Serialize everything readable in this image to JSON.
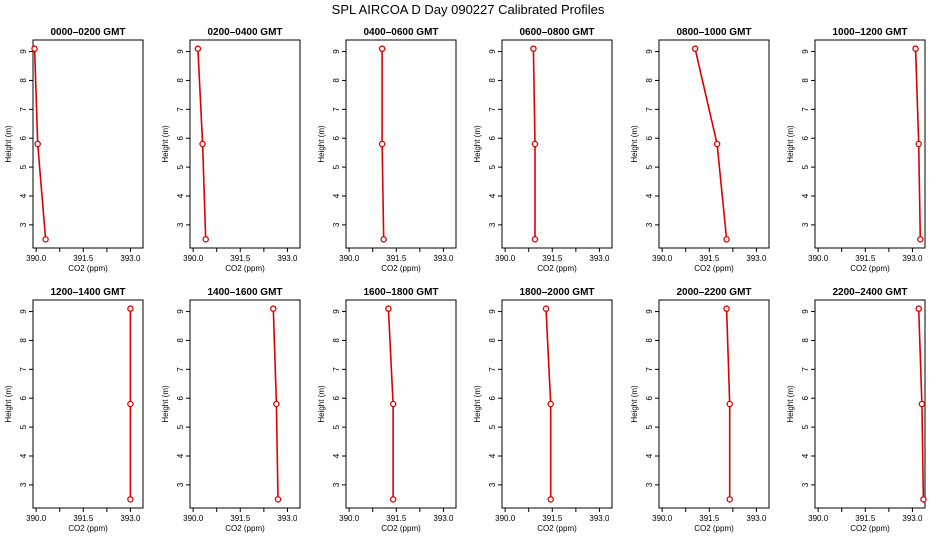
{
  "title": "SPL AIRCOA D  Day 090227  Calibrated Profiles",
  "colors": {
    "line": "#dd0000",
    "axis": "#000000",
    "background": "#ffffff"
  },
  "chart_data": [
    {
      "type": "line",
      "title": "0000–0200 GMT",
      "xlabel": "CO2 (ppm)",
      "ylabel": "Height (m)",
      "xlim": [
        389.9,
        393.4
      ],
      "ylim": [
        2.2,
        9.4
      ],
      "xticks": [
        "390.0",
        "391.5",
        "393.0"
      ],
      "yticks": [
        "3",
        "4",
        "5",
        "6",
        "7",
        "8",
        "9"
      ],
      "x": [
        389.95,
        390.05,
        390.3
      ],
      "y": [
        9.1,
        5.8,
        2.5
      ]
    },
    {
      "type": "line",
      "title": "0200–0400 GMT",
      "xlabel": "CO2 (ppm)",
      "ylabel": "Height (m)",
      "xlim": [
        389.9,
        393.4
      ],
      "ylim": [
        2.2,
        9.4
      ],
      "xticks": [
        "390.0",
        "391.5",
        "393.0"
      ],
      "yticks": [
        "3",
        "4",
        "5",
        "6",
        "7",
        "8",
        "9"
      ],
      "x": [
        390.15,
        390.3,
        390.4
      ],
      "y": [
        9.1,
        5.8,
        2.5
      ]
    },
    {
      "type": "line",
      "title": "0400–0600 GMT",
      "xlabel": "CO2 (ppm)",
      "ylabel": "Height (m)",
      "xlim": [
        389.9,
        393.4
      ],
      "ylim": [
        2.2,
        9.4
      ],
      "xticks": [
        "390.0",
        "391.5",
        "393.0"
      ],
      "yticks": [
        "3",
        "4",
        "5",
        "6",
        "7",
        "8",
        "9"
      ],
      "x": [
        391.05,
        391.05,
        391.1
      ],
      "y": [
        9.1,
        5.8,
        2.5
      ]
    },
    {
      "type": "line",
      "title": "0600–0800 GMT",
      "xlabel": "CO2 (ppm)",
      "ylabel": "Height (m)",
      "xlim": [
        389.9,
        393.4
      ],
      "ylim": [
        2.2,
        9.4
      ],
      "xticks": [
        "390.0",
        "391.5",
        "393.0"
      ],
      "yticks": [
        "3",
        "4",
        "5",
        "6",
        "7",
        "8",
        "9"
      ],
      "x": [
        390.9,
        390.95,
        390.95
      ],
      "y": [
        9.1,
        5.8,
        2.5
      ]
    },
    {
      "type": "line",
      "title": "0800–1000 GMT",
      "xlabel": "CO2 (ppm)",
      "ylabel": "Height (m)",
      "xlim": [
        389.9,
        393.4
      ],
      "ylim": [
        2.2,
        9.4
      ],
      "xticks": [
        "390.0",
        "391.5",
        "393.0"
      ],
      "yticks": [
        "3",
        "4",
        "5",
        "6",
        "7",
        "8",
        "9"
      ],
      "x": [
        391.05,
        391.75,
        392.05
      ],
      "y": [
        9.1,
        5.8,
        2.5
      ]
    },
    {
      "type": "line",
      "title": "1000–1200 GMT",
      "xlabel": "CO2 (ppm)",
      "ylabel": "Height (m)",
      "xlim": [
        389.9,
        393.4
      ],
      "ylim": [
        2.2,
        9.4
      ],
      "xticks": [
        "390.0",
        "391.5",
        "393.0"
      ],
      "yticks": [
        "3",
        "4",
        "5",
        "6",
        "7",
        "8",
        "9"
      ],
      "x": [
        393.1,
        393.2,
        393.25
      ],
      "y": [
        9.1,
        5.8,
        2.5
      ]
    },
    {
      "type": "line",
      "title": "1200–1400 GMT",
      "xlabel": "CO2 (ppm)",
      "ylabel": "Height (m)",
      "xlim": [
        389.9,
        393.4
      ],
      "ylim": [
        2.2,
        9.4
      ],
      "xticks": [
        "390.0",
        "391.5",
        "393.0"
      ],
      "yticks": [
        "3",
        "4",
        "5",
        "6",
        "7",
        "8",
        "9"
      ],
      "x": [
        393.0,
        393.0,
        393.0
      ],
      "y": [
        9.1,
        5.8,
        2.5
      ]
    },
    {
      "type": "line",
      "title": "1400–1600 GMT",
      "xlabel": "CO2 (ppm)",
      "ylabel": "Height (m)",
      "xlim": [
        389.9,
        393.4
      ],
      "ylim": [
        2.2,
        9.4
      ],
      "xticks": [
        "390.0",
        "391.5",
        "393.0"
      ],
      "yticks": [
        "3",
        "4",
        "5",
        "6",
        "7",
        "8",
        "9"
      ],
      "x": [
        392.55,
        392.65,
        392.7
      ],
      "y": [
        9.1,
        5.8,
        2.5
      ]
    },
    {
      "type": "line",
      "title": "1600–1800 GMT",
      "xlabel": "CO2 (ppm)",
      "ylabel": "Height (m)",
      "xlim": [
        389.9,
        393.4
      ],
      "ylim": [
        2.2,
        9.4
      ],
      "xticks": [
        "390.0",
        "391.5",
        "393.0"
      ],
      "yticks": [
        "3",
        "4",
        "5",
        "6",
        "7",
        "8",
        "9"
      ],
      "x": [
        391.25,
        391.4,
        391.4
      ],
      "y": [
        9.1,
        5.8,
        2.5
      ]
    },
    {
      "type": "line",
      "title": "1800–2000 GMT",
      "xlabel": "CO2 (ppm)",
      "ylabel": "Height (m)",
      "xlim": [
        389.9,
        393.4
      ],
      "ylim": [
        2.2,
        9.4
      ],
      "xticks": [
        "390.0",
        "391.5",
        "393.0"
      ],
      "yticks": [
        "3",
        "4",
        "5",
        "6",
        "7",
        "8",
        "9"
      ],
      "x": [
        391.3,
        391.45,
        391.45
      ],
      "y": [
        9.1,
        5.8,
        2.5
      ]
    },
    {
      "type": "line",
      "title": "2000–2200 GMT",
      "xlabel": "CO2 (ppm)",
      "ylabel": "Height (m)",
      "xlim": [
        389.9,
        393.4
      ],
      "ylim": [
        2.2,
        9.4
      ],
      "xticks": [
        "390.0",
        "391.5",
        "393.0"
      ],
      "yticks": [
        "3",
        "4",
        "5",
        "6",
        "7",
        "8",
        "9"
      ],
      "x": [
        392.05,
        392.15,
        392.15
      ],
      "y": [
        9.1,
        5.8,
        2.5
      ]
    },
    {
      "type": "line",
      "title": "2200–2400 GMT",
      "xlabel": "CO2 (ppm)",
      "ylabel": "Height (m)",
      "xlim": [
        389.9,
        393.4
      ],
      "ylim": [
        2.2,
        9.4
      ],
      "xticks": [
        "390.0",
        "391.5",
        "393.0"
      ],
      "yticks": [
        "3",
        "4",
        "5",
        "6",
        "7",
        "8",
        "9"
      ],
      "x": [
        393.2,
        393.3,
        393.35
      ],
      "y": [
        9.1,
        5.8,
        2.5
      ]
    }
  ]
}
